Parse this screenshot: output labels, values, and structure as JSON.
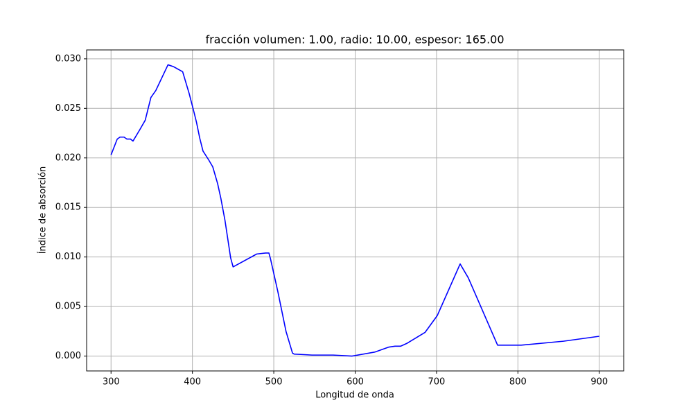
{
  "chart_data": {
    "type": "line",
    "title": "fracción volumen: 1.00, radio: 10.00, espesor: 165.00",
    "xlabel": "Longitud de onda",
    "ylabel": "Índice de absorción",
    "grid": true,
    "xlim": [
      270,
      930
    ],
    "ylim": [
      -0.0015,
      0.0309
    ],
    "xticks": [
      300,
      400,
      500,
      600,
      700,
      800,
      900
    ],
    "yticks": [
      {
        "value": 0,
        "label": "0.000"
      },
      {
        "value": 0.005,
        "label": "0.005"
      },
      {
        "value": 0.01,
        "label": "0.010"
      },
      {
        "value": 0.015,
        "label": "0.015"
      },
      {
        "value": 0.02,
        "label": "0.020"
      },
      {
        "value": 0.025,
        "label": "0.025"
      },
      {
        "value": 0.03,
        "label": "0.030"
      }
    ],
    "x": [
      300,
      307.6,
      311,
      316,
      319.5,
      324,
      327,
      335,
      342,
      349,
      355,
      370,
      377,
      388,
      396,
      402,
      405,
      409,
      413,
      420,
      425,
      431,
      435,
      440,
      447,
      450,
      479,
      490,
      494,
      496,
      505,
      515,
      523,
      525,
      547,
      573,
      596,
      624,
      641,
      649,
      656,
      664,
      686,
      701,
      729,
      739,
      775,
      792,
      804,
      856,
      900
    ],
    "series": [
      {
        "color": "#0000ff",
        "values": [
          0.0203,
          0.0219,
          0.0221,
          0.0221,
          0.0219,
          0.0219,
          0.0217,
          0.0228,
          0.0238,
          0.0261,
          0.0268,
          0.0294,
          0.0292,
          0.0287,
          0.0265,
          0.0246,
          0.0236,
          0.022,
          0.0207,
          0.0198,
          0.0191,
          0.0174,
          0.0159,
          0.0137,
          0.0099,
          0.009,
          0.0103,
          0.0104,
          0.0104,
          0.0098,
          0.0065,
          0.0025,
          0.0003,
          0.0002,
          0.0001,
          0.0001,
          0.0,
          0.0004,
          0.0009,
          0.001,
          0.001,
          0.0013,
          0.0024,
          0.0041,
          0.0093,
          0.0079,
          0.0011,
          0.0011,
          0.0011,
          0.0015,
          0.002
        ]
      }
    ]
  }
}
